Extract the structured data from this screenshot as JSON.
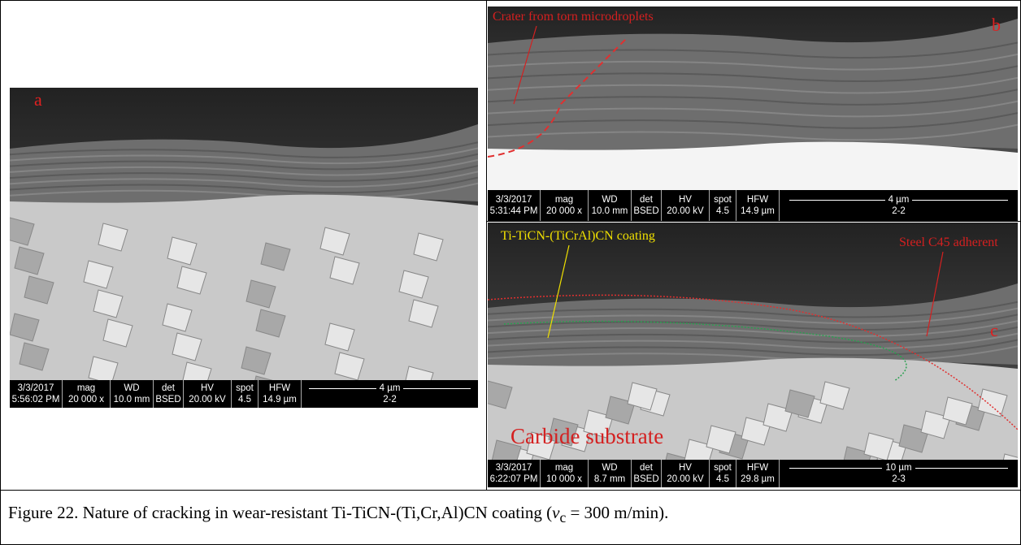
{
  "panels": [
    {
      "label": "a",
      "annotations": [],
      "databar": {
        "date": "3/3/2017",
        "time": "5:56:02 PM",
        "headers": [
          "mag",
          "WD",
          "det",
          "HV",
          "spot",
          "HFW"
        ],
        "values": [
          "20 000 x",
          "10.0 mm",
          "BSED",
          "20.00 kV",
          "4.5",
          "14.9 µm"
        ],
        "scale": "4 µm",
        "id": "2-2"
      }
    },
    {
      "label": "b",
      "annotations": [
        "Crater from torn microdroplets"
      ],
      "databar": {
        "date": "3/3/2017",
        "time": "5:31:44 PM",
        "headers": [
          "mag",
          "WD",
          "det",
          "HV",
          "spot",
          "HFW"
        ],
        "values": [
          "20 000 x",
          "10.0 mm",
          "BSED",
          "20.00 kV",
          "4.5",
          "14.9 µm"
        ],
        "scale": "4 µm",
        "id": "2-2"
      }
    },
    {
      "label": "c",
      "annotations": [
        "Ti-TiCN-(TiCrAl)CN coating",
        "Steel C45 adherent",
        "Carbide substrate"
      ],
      "databar": {
        "date": "3/3/2017",
        "time": "6:22:07 PM",
        "headers": [
          "mag",
          "WD",
          "det",
          "HV",
          "spot",
          "HFW"
        ],
        "values": [
          "10 000 x",
          "8.7 mm",
          "BSED",
          "20.00 kV",
          "4.5",
          "29.8 µm"
        ],
        "scale": "10 µm",
        "id": "2-3"
      }
    }
  ],
  "caption": {
    "before": "Figure 22. Nature of cracking in wear-resistant Ti-TiCN-(Ti,Cr,Al)CN coating (",
    "symbol": "v",
    "subscript": "c",
    "after": " = 300 m/min)."
  }
}
